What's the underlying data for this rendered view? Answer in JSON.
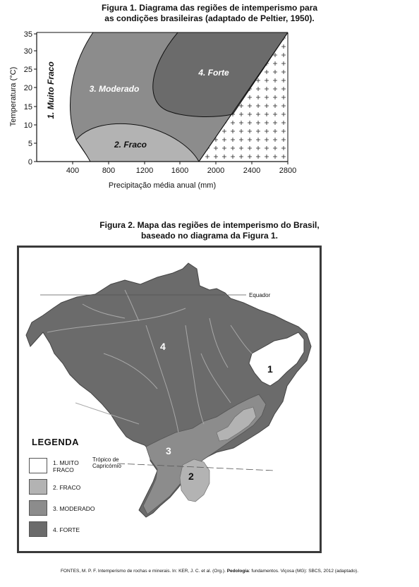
{
  "figure1": {
    "title_line1": "Figura 1. Diagrama das regiões de intemperismo para",
    "title_line2": "as condições brasileiras (adaptado de Peltier, 1950).",
    "y_axis_label": "Temperatura (°C)",
    "x_axis_label": "Precipitação média anual (mm)",
    "y_ticks": [
      "0",
      "5",
      "10",
      "15",
      "20",
      "25",
      "30",
      "35"
    ],
    "x_ticks": [
      "400",
      "800",
      "1200",
      "1600",
      "2000",
      "2400",
      "2800"
    ],
    "regions": {
      "muito_fraco": "1. Muito Fraco",
      "fraco": "2. Fraco",
      "moderado": "3. Moderado",
      "forte": "4. Forte"
    },
    "colors": {
      "fraco": "#b3b3b3",
      "moderado": "#8c8c8c",
      "forte": "#6b6b6b"
    }
  },
  "figure2": {
    "title_line1": "Figura 2. Mapa das regiões de intemperismo do Brasil,",
    "title_line2": "baseado no diagrama da Figura 1.",
    "equator_label": "Equador",
    "tropic_label_line1": "Trópico de",
    "tropic_label_line2": "Capricórnio",
    "region_numbers": [
      "1",
      "2",
      "3",
      "4"
    ],
    "legend": {
      "title": "LEGENDA",
      "items": [
        {
          "label_line1": "1. MUITO",
          "label_line2": "FRACO",
          "color": "#ffffff"
        },
        {
          "label_line1": "2. FRACO",
          "label_line2": "",
          "color": "#b3b3b3"
        },
        {
          "label_line1": "3. MODERADO",
          "label_line2": "",
          "color": "#8c8c8c"
        },
        {
          "label_line1": "4. FORTE",
          "label_line2": "",
          "color": "#6b6b6b"
        }
      ]
    }
  },
  "source": {
    "prefix": "FONTES, M. P. F. Intemperismo de rochas e minerais. In: KER, J. C. et al. (Org.). ",
    "bold": "Pedologia",
    "suffix": ": fundamentos. Viçosa (MG): SBCS, 2012 (adaptado)."
  }
}
